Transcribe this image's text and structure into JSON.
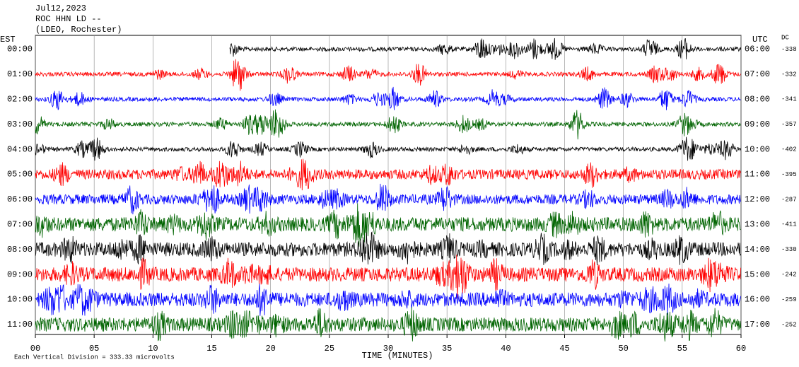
{
  "header": {
    "lines": [
      "Jul12,2023",
      "ROC HHN LD --",
      "(LDEO, Rochester)"
    ]
  },
  "chart_data": {
    "type": "helicorder",
    "left_axis_label": "EST",
    "right_axis_label": "UTC",
    "dc_label": "DC",
    "xlabel": "TIME (MINUTES)",
    "xlim": [
      0,
      60
    ],
    "xticks": [
      {
        "value": 0,
        "label": "00"
      },
      {
        "value": 5,
        "label": "05"
      },
      10,
      15,
      20,
      25,
      30,
      35,
      40,
      45,
      50,
      55,
      60
    ],
    "rows": [
      {
        "est": "00:00",
        "utc": "06:00",
        "dc": -338,
        "color": "#000000"
      },
      {
        "est": "01:00",
        "utc": "07:00",
        "dc": -332,
        "color": "#ff0000"
      },
      {
        "est": "02:00",
        "utc": "08:00",
        "dc": -341,
        "color": "#0000ff"
      },
      {
        "est": "03:00",
        "utc": "09:00",
        "dc": -357,
        "color": "#006400"
      },
      {
        "est": "04:00",
        "utc": "10:00",
        "dc": -402,
        "color": "#000000"
      },
      {
        "est": "05:00",
        "utc": "11:00",
        "dc": -395,
        "color": "#ff0000"
      },
      {
        "est": "06:00",
        "utc": "12:00",
        "dc": -287,
        "color": "#0000ff"
      },
      {
        "est": "07:00",
        "utc": "13:00",
        "dc": -411,
        "color": "#006400"
      },
      {
        "est": "08:00",
        "utc": "14:00",
        "dc": -330,
        "color": "#000000"
      },
      {
        "est": "09:00",
        "utc": "15:00",
        "dc": -242,
        "color": "#ff0000"
      },
      {
        "est": "10:00",
        "utc": "16:00",
        "dc": -259,
        "color": "#0000ff"
      },
      {
        "est": "11:00",
        "utc": "17:00",
        "dc": -252,
        "color": "#006400"
      }
    ],
    "footer": "Each Vertical Division =  333.33 microvolts"
  }
}
